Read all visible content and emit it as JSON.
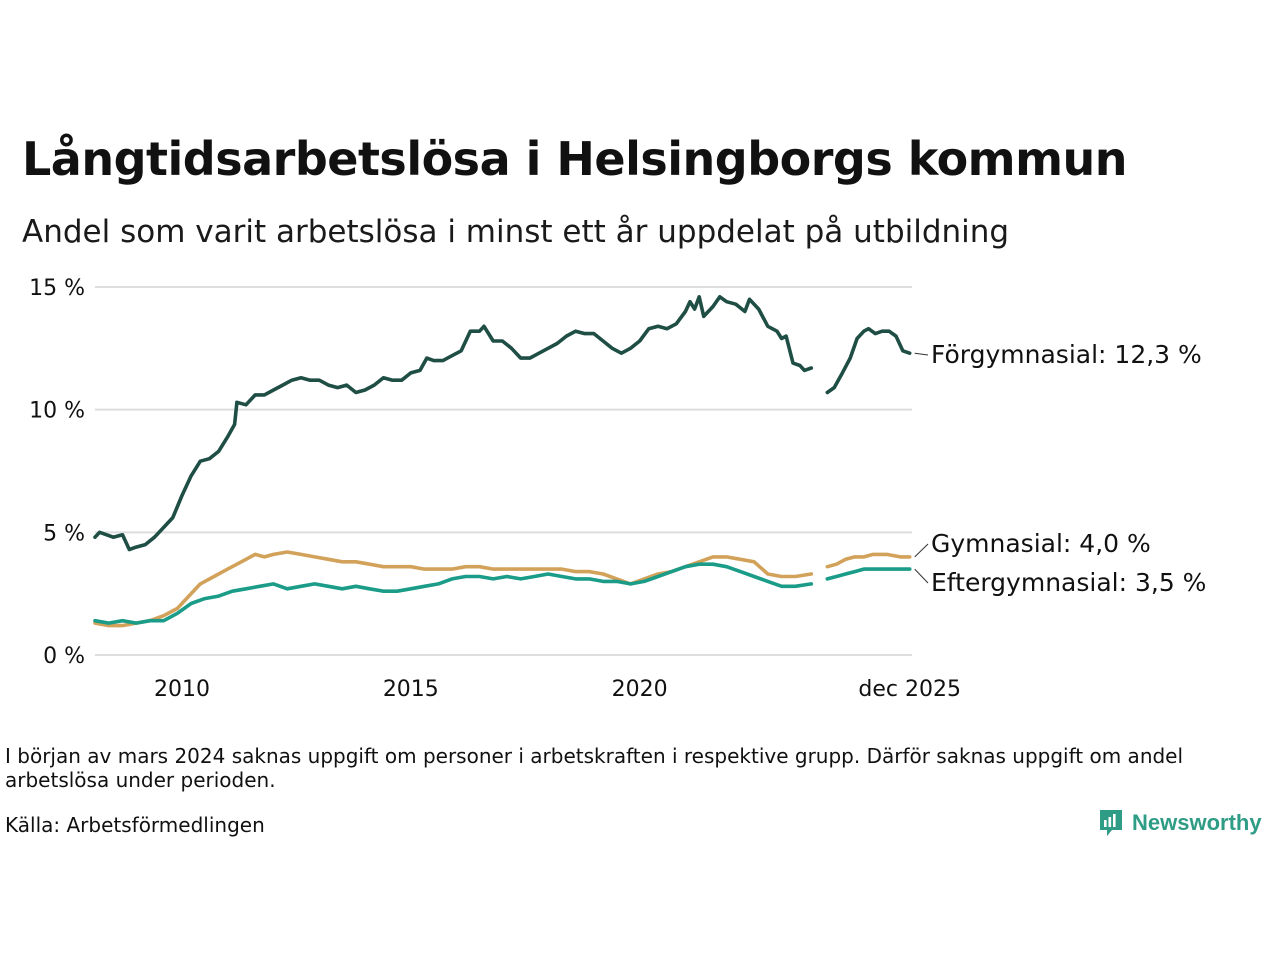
{
  "title": "Långtidsarbetslösa i Helsingborgs kommun",
  "subtitle": "Andel som varit arbetslösa i minst ett år uppdelat på utbildning",
  "note": "I början av mars 2024 saknas uppgift om personer i arbetskraften i respektive grupp. Därför saknas uppgift om andel arbetslösa under perioden.",
  "source": "Källa: Arbetsförmedlingen",
  "brand": "Newsworthy",
  "colors": {
    "forgymnasial": "#1f4e45",
    "gymnasial": "#d3a25a",
    "eftergymnasial": "#1a9c88",
    "grid": "#dddddd",
    "brand": "#2f9c86"
  },
  "chart_data": {
    "type": "line",
    "title": "Långtidsarbetslösa i Helsingborgs kommun",
    "xlabel": "",
    "ylabel": "",
    "xlim": [
      2008.1,
      2025.95
    ],
    "ylim": [
      0,
      15
    ],
    "y_ticks": [
      0,
      5,
      10,
      15
    ],
    "y_tick_labels": [
      "0 %",
      "5 %",
      "10 %",
      "15 %"
    ],
    "x_ticks": [
      2010,
      2015,
      2020,
      2025.9
    ],
    "x_tick_labels": [
      "2010",
      "2015",
      "2020",
      "dec 2025"
    ],
    "gap": {
      "from": 2023.75,
      "to": 2024.1
    },
    "series": [
      {
        "name": "Förgymnasial",
        "label": "Förgymnasial: 12,3 %",
        "color": "#1f4e45",
        "points": [
          [
            2008.1,
            4.8
          ],
          [
            2008.2,
            5.0
          ],
          [
            2008.5,
            4.8
          ],
          [
            2008.7,
            4.9
          ],
          [
            2008.85,
            4.3
          ],
          [
            2009.0,
            4.4
          ],
          [
            2009.2,
            4.5
          ],
          [
            2009.4,
            4.8
          ],
          [
            2009.6,
            5.2
          ],
          [
            2009.8,
            5.6
          ],
          [
            2010.0,
            6.5
          ],
          [
            2010.2,
            7.3
          ],
          [
            2010.4,
            7.9
          ],
          [
            2010.6,
            8.0
          ],
          [
            2010.8,
            8.3
          ],
          [
            2011.0,
            8.9
          ],
          [
            2011.15,
            9.4
          ],
          [
            2011.2,
            10.3
          ],
          [
            2011.4,
            10.2
          ],
          [
            2011.6,
            10.6
          ],
          [
            2011.8,
            10.6
          ],
          [
            2012.0,
            10.8
          ],
          [
            2012.2,
            11.0
          ],
          [
            2012.4,
            11.2
          ],
          [
            2012.6,
            11.3
          ],
          [
            2012.8,
            11.2
          ],
          [
            2013.0,
            11.2
          ],
          [
            2013.2,
            11.0
          ],
          [
            2013.4,
            10.9
          ],
          [
            2013.6,
            11.0
          ],
          [
            2013.8,
            10.7
          ],
          [
            2014.0,
            10.8
          ],
          [
            2014.2,
            11.0
          ],
          [
            2014.4,
            11.3
          ],
          [
            2014.6,
            11.2
          ],
          [
            2014.8,
            11.2
          ],
          [
            2015.0,
            11.5
          ],
          [
            2015.2,
            11.6
          ],
          [
            2015.35,
            12.1
          ],
          [
            2015.5,
            12.0
          ],
          [
            2015.7,
            12.0
          ],
          [
            2015.9,
            12.2
          ],
          [
            2016.1,
            12.4
          ],
          [
            2016.3,
            13.2
          ],
          [
            2016.5,
            13.2
          ],
          [
            2016.6,
            13.4
          ],
          [
            2016.8,
            12.8
          ],
          [
            2017.0,
            12.8
          ],
          [
            2017.2,
            12.5
          ],
          [
            2017.4,
            12.1
          ],
          [
            2017.6,
            12.1
          ],
          [
            2017.8,
            12.3
          ],
          [
            2018.0,
            12.5
          ],
          [
            2018.2,
            12.7
          ],
          [
            2018.4,
            13.0
          ],
          [
            2018.6,
            13.2
          ],
          [
            2018.8,
            13.1
          ],
          [
            2019.0,
            13.1
          ],
          [
            2019.2,
            12.8
          ],
          [
            2019.4,
            12.5
          ],
          [
            2019.6,
            12.3
          ],
          [
            2019.8,
            12.5
          ],
          [
            2020.0,
            12.8
          ],
          [
            2020.2,
            13.3
          ],
          [
            2020.4,
            13.4
          ],
          [
            2020.6,
            13.3
          ],
          [
            2020.8,
            13.5
          ],
          [
            2021.0,
            14.0
          ],
          [
            2021.1,
            14.4
          ],
          [
            2021.2,
            14.1
          ],
          [
            2021.3,
            14.6
          ],
          [
            2021.4,
            13.8
          ],
          [
            2021.6,
            14.2
          ],
          [
            2021.75,
            14.6
          ],
          [
            2021.9,
            14.4
          ],
          [
            2022.1,
            14.3
          ],
          [
            2022.3,
            14.0
          ],
          [
            2022.4,
            14.5
          ],
          [
            2022.6,
            14.1
          ],
          [
            2022.8,
            13.4
          ],
          [
            2023.0,
            13.2
          ],
          [
            2023.1,
            12.9
          ],
          [
            2023.2,
            13.0
          ],
          [
            2023.35,
            11.9
          ],
          [
            2023.5,
            11.8
          ],
          [
            2023.6,
            11.6
          ],
          [
            2023.75,
            11.7
          ],
          [
            null,
            null
          ],
          [
            2024.1,
            10.7
          ],
          [
            2024.25,
            10.9
          ],
          [
            2024.4,
            11.4
          ],
          [
            2024.6,
            12.1
          ],
          [
            2024.75,
            12.9
          ],
          [
            2024.9,
            13.2
          ],
          [
            2025.0,
            13.3
          ],
          [
            2025.15,
            13.1
          ],
          [
            2025.3,
            13.2
          ],
          [
            2025.45,
            13.2
          ],
          [
            2025.6,
            13.0
          ],
          [
            2025.75,
            12.4
          ],
          [
            2025.9,
            12.3
          ]
        ]
      },
      {
        "name": "Gymnasial",
        "label": "Gymnasial:  4,0 %",
        "color": "#d3a25a",
        "points": [
          [
            2008.1,
            1.3
          ],
          [
            2008.4,
            1.2
          ],
          [
            2008.7,
            1.2
          ],
          [
            2009.0,
            1.3
          ],
          [
            2009.3,
            1.4
          ],
          [
            2009.6,
            1.6
          ],
          [
            2009.9,
            1.9
          ],
          [
            2010.1,
            2.3
          ],
          [
            2010.4,
            2.9
          ],
          [
            2010.7,
            3.2
          ],
          [
            2011.0,
            3.5
          ],
          [
            2011.2,
            3.7
          ],
          [
            2011.4,
            3.9
          ],
          [
            2011.6,
            4.1
          ],
          [
            2011.8,
            4.0
          ],
          [
            2012.0,
            4.1
          ],
          [
            2012.3,
            4.2
          ],
          [
            2012.6,
            4.1
          ],
          [
            2012.9,
            4.0
          ],
          [
            2013.2,
            3.9
          ],
          [
            2013.5,
            3.8
          ],
          [
            2013.8,
            3.8
          ],
          [
            2014.1,
            3.7
          ],
          [
            2014.4,
            3.6
          ],
          [
            2014.7,
            3.6
          ],
          [
            2015.0,
            3.6
          ],
          [
            2015.3,
            3.5
          ],
          [
            2015.6,
            3.5
          ],
          [
            2015.9,
            3.5
          ],
          [
            2016.2,
            3.6
          ],
          [
            2016.5,
            3.6
          ],
          [
            2016.8,
            3.5
          ],
          [
            2017.1,
            3.5
          ],
          [
            2017.4,
            3.5
          ],
          [
            2017.7,
            3.5
          ],
          [
            2018.0,
            3.5
          ],
          [
            2018.3,
            3.5
          ],
          [
            2018.6,
            3.4
          ],
          [
            2018.9,
            3.4
          ],
          [
            2019.2,
            3.3
          ],
          [
            2019.5,
            3.1
          ],
          [
            2019.8,
            2.9
          ],
          [
            2020.1,
            3.1
          ],
          [
            2020.4,
            3.3
          ],
          [
            2020.7,
            3.4
          ],
          [
            2021.0,
            3.6
          ],
          [
            2021.3,
            3.8
          ],
          [
            2021.6,
            4.0
          ],
          [
            2021.9,
            4.0
          ],
          [
            2022.2,
            3.9
          ],
          [
            2022.5,
            3.8
          ],
          [
            2022.8,
            3.3
          ],
          [
            2023.1,
            3.2
          ],
          [
            2023.4,
            3.2
          ],
          [
            2023.75,
            3.3
          ],
          [
            null,
            null
          ],
          [
            2024.1,
            3.6
          ],
          [
            2024.3,
            3.7
          ],
          [
            2024.5,
            3.9
          ],
          [
            2024.7,
            4.0
          ],
          [
            2024.9,
            4.0
          ],
          [
            2025.1,
            4.1
          ],
          [
            2025.4,
            4.1
          ],
          [
            2025.7,
            4.0
          ],
          [
            2025.9,
            4.0
          ]
        ]
      },
      {
        "name": "Eftergymnasial",
        "label": "Eftergymnasial:  3,5 %",
        "color": "#1a9c88",
        "points": [
          [
            2008.1,
            1.4
          ],
          [
            2008.4,
            1.3
          ],
          [
            2008.7,
            1.4
          ],
          [
            2009.0,
            1.3
          ],
          [
            2009.3,
            1.4
          ],
          [
            2009.6,
            1.4
          ],
          [
            2009.9,
            1.7
          ],
          [
            2010.2,
            2.1
          ],
          [
            2010.5,
            2.3
          ],
          [
            2010.8,
            2.4
          ],
          [
            2011.1,
            2.6
          ],
          [
            2011.4,
            2.7
          ],
          [
            2011.7,
            2.8
          ],
          [
            2012.0,
            2.9
          ],
          [
            2012.3,
            2.7
          ],
          [
            2012.6,
            2.8
          ],
          [
            2012.9,
            2.9
          ],
          [
            2013.2,
            2.8
          ],
          [
            2013.5,
            2.7
          ],
          [
            2013.8,
            2.8
          ],
          [
            2014.1,
            2.7
          ],
          [
            2014.4,
            2.6
          ],
          [
            2014.7,
            2.6
          ],
          [
            2015.0,
            2.7
          ],
          [
            2015.3,
            2.8
          ],
          [
            2015.6,
            2.9
          ],
          [
            2015.9,
            3.1
          ],
          [
            2016.2,
            3.2
          ],
          [
            2016.5,
            3.2
          ],
          [
            2016.8,
            3.1
          ],
          [
            2017.1,
            3.2
          ],
          [
            2017.4,
            3.1
          ],
          [
            2017.7,
            3.2
          ],
          [
            2018.0,
            3.3
          ],
          [
            2018.3,
            3.2
          ],
          [
            2018.6,
            3.1
          ],
          [
            2018.9,
            3.1
          ],
          [
            2019.2,
            3.0
          ],
          [
            2019.5,
            3.0
          ],
          [
            2019.8,
            2.9
          ],
          [
            2020.1,
            3.0
          ],
          [
            2020.4,
            3.2
          ],
          [
            2020.7,
            3.4
          ],
          [
            2021.0,
            3.6
          ],
          [
            2021.3,
            3.7
          ],
          [
            2021.6,
            3.7
          ],
          [
            2021.9,
            3.6
          ],
          [
            2022.2,
            3.4
          ],
          [
            2022.5,
            3.2
          ],
          [
            2022.8,
            3.0
          ],
          [
            2023.1,
            2.8
          ],
          [
            2023.4,
            2.8
          ],
          [
            2023.75,
            2.9
          ],
          [
            null,
            null
          ],
          [
            2024.1,
            3.1
          ],
          [
            2024.3,
            3.2
          ],
          [
            2024.5,
            3.3
          ],
          [
            2024.7,
            3.4
          ],
          [
            2024.9,
            3.5
          ],
          [
            2025.1,
            3.5
          ],
          [
            2025.4,
            3.5
          ],
          [
            2025.7,
            3.5
          ],
          [
            2025.9,
            3.5
          ]
        ]
      }
    ]
  }
}
